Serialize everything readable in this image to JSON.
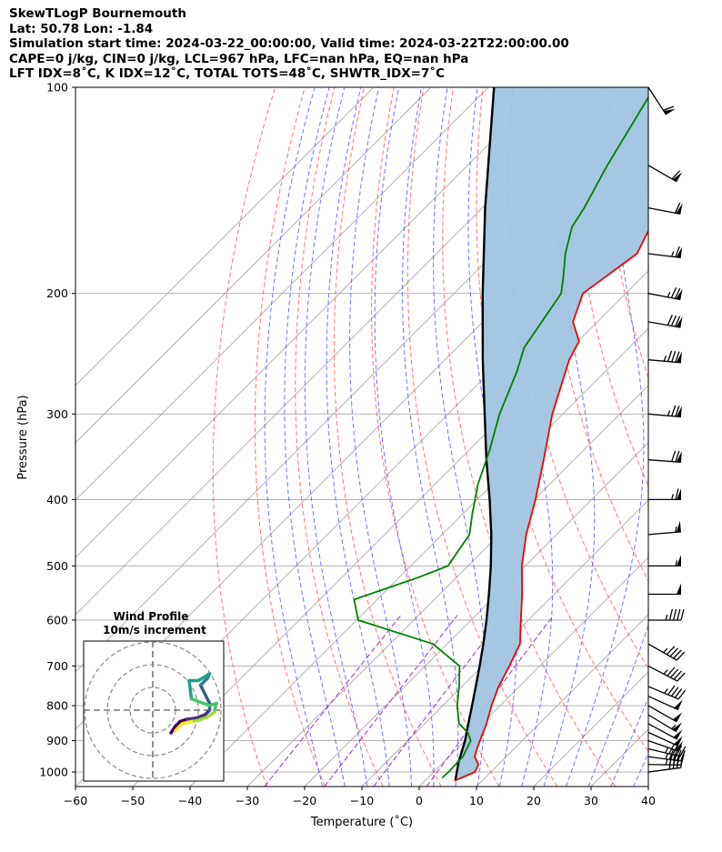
{
  "header": {
    "line1": "SkewTLogP Bournemouth",
    "line2": "Lat: 50.78   Lon: -1.84",
    "line3": "Simulation start time: 2024-03-22_00:00:00, Valid time: 2024-03-22T22:00:00.00",
    "line4": "CAPE=0 j/kg, CIN=0 j/kg, LCL=967 hPa, LFC=nan hPa, EQ=nan hPa",
    "line5": "LFT IDX=8˚C, K IDX=12˚C, TOTAL TOTS=48˚C, SHWTR_IDX=7˚C"
  },
  "colors": {
    "temperature": "#ee0000",
    "dewpoint": "#008000",
    "parcel": "#000000",
    "cape_fill": "#a0c4df",
    "dry_adiabat": "#ff5050",
    "moist_adiabat": "#4d4dff",
    "mixing_ratio": "#9b30c8",
    "isotherm": "#a8a8a8"
  },
  "chart_data": {
    "type": "skewt",
    "xlabel": "Temperature (˚C)",
    "ylabel": "Pressure (hPa)",
    "xlim": [
      -60,
      40
    ],
    "ylim": [
      1050,
      100
    ],
    "x_ticks": [
      "−60",
      "−50",
      "−40",
      "−30",
      "−20",
      "−10",
      "0",
      "10",
      "20",
      "30",
      "40"
    ],
    "y_ticks": [
      "100",
      "200",
      "300",
      "400",
      "500",
      "600",
      "700",
      "800",
      "900",
      "1000"
    ],
    "grid": true,
    "temperature": [
      {
        "p": 1030,
        "t": 5.2
      },
      {
        "p": 1000,
        "t": 7.2
      },
      {
        "p": 975,
        "t": 6.5
      },
      {
        "p": 950,
        "t": 4.5
      },
      {
        "p": 925,
        "t": 3.5
      },
      {
        "p": 900,
        "t": 2.6
      },
      {
        "p": 850,
        "t": 0.8
      },
      {
        "p": 800,
        "t": -1.5
      },
      {
        "p": 750,
        "t": -3.6
      },
      {
        "p": 700,
        "t": -5.3
      },
      {
        "p": 650,
        "t": -7.3
      },
      {
        "p": 600,
        "t": -11.3
      },
      {
        "p": 550,
        "t": -15.6
      },
      {
        "p": 500,
        "t": -20.6
      },
      {
        "p": 450,
        "t": -25.3
      },
      {
        "p": 400,
        "t": -29.8
      },
      {
        "p": 350,
        "t": -35.3
      },
      {
        "p": 300,
        "t": -41.8
      },
      {
        "p": 250,
        "t": -48.3
      },
      {
        "p": 235,
        "t": -49.8
      },
      {
        "p": 220,
        "t": -54.3
      },
      {
        "p": 200,
        "t": -57.5
      },
      {
        "p": 175,
        "t": -55.0
      },
      {
        "p": 150,
        "t": -59.0
      },
      {
        "p": 130,
        "t": -63.0
      },
      {
        "p": 120,
        "t": -64.0
      },
      {
        "p": 110,
        "t": -67.3
      },
      {
        "p": 100,
        "t": -69.3
      }
    ],
    "dewpoint": [
      {
        "p": 1020,
        "t": 2.5
      },
      {
        "p": 1000,
        "t": 2.6
      },
      {
        "p": 950,
        "t": 2.4
      },
      {
        "p": 900,
        "t": 1.0
      },
      {
        "p": 875,
        "t": -1.0
      },
      {
        "p": 850,
        "t": -4.0
      },
      {
        "p": 800,
        "t": -7.5
      },
      {
        "p": 750,
        "t": -10.5
      },
      {
        "p": 700,
        "t": -14.0
      },
      {
        "p": 650,
        "t": -22.5
      },
      {
        "p": 600,
        "t": -39.7
      },
      {
        "p": 560,
        "t": -44.0
      },
      {
        "p": 520,
        "t": -36.7
      },
      {
        "p": 500,
        "t": -33.5
      },
      {
        "p": 450,
        "t": -35.2
      },
      {
        "p": 420,
        "t": -38.3
      },
      {
        "p": 380,
        "t": -42.5
      },
      {
        "p": 340,
        "t": -46.3
      },
      {
        "p": 300,
        "t": -51.0
      },
      {
        "p": 260,
        "t": -55.4
      },
      {
        "p": 240,
        "t": -58.3
      },
      {
        "p": 200,
        "t": -61.3
      },
      {
        "p": 190,
        "t": -63.6
      },
      {
        "p": 175,
        "t": -67.5
      },
      {
        "p": 160,
        "t": -71.0
      },
      {
        "p": 150,
        "t": -72.2
      },
      {
        "p": 130,
        "t": -75.6
      },
      {
        "p": 100,
        "t": -81.0
      }
    ],
    "parcel": [
      {
        "p": 1030,
        "t": 5.3
      },
      {
        "p": 967,
        "t": 2.6
      },
      {
        "p": 900,
        "t": 0.0
      },
      {
        "p": 850,
        "t": -2.4
      },
      {
        "p": 800,
        "t": -4.9
      },
      {
        "p": 750,
        "t": -7.6
      },
      {
        "p": 700,
        "t": -10.5
      },
      {
        "p": 650,
        "t": -13.7
      },
      {
        "p": 600,
        "t": -17.3
      },
      {
        "p": 550,
        "t": -21.4
      },
      {
        "p": 500,
        "t": -26.0
      },
      {
        "p": 450,
        "t": -31.4
      },
      {
        "p": 400,
        "t": -37.8
      },
      {
        "p": 350,
        "t": -45.3
      },
      {
        "p": 300,
        "t": -53.6
      },
      {
        "p": 250,
        "t": -63.4
      },
      {
        "p": 200,
        "t": -75.0
      },
      {
        "p": 150,
        "t": -89.5
      },
      {
        "p": 100,
        "t": -109.0
      }
    ],
    "wind_barbs": [
      {
        "p": 1000,
        "u": -20.5,
        "v": -2.7
      },
      {
        "p": 975,
        "u": -22.1,
        "v": 0.3
      },
      {
        "p": 950,
        "u": -23.1,
        "v": 3.0
      },
      {
        "p": 925,
        "u": -23.6,
        "v": 5.6
      },
      {
        "p": 900,
        "u": -23.9,
        "v": 8.3
      },
      {
        "p": 875,
        "u": -23.6,
        "v": 10.8
      },
      {
        "p": 850,
        "u": -23.2,
        "v": 12.6
      },
      {
        "p": 825,
        "u": -23.2,
        "v": 14.0
      },
      {
        "p": 800,
        "u": -23.5,
        "v": 13.3
      },
      {
        "p": 775,
        "u": -22.9,
        "v": 10.3
      },
      {
        "p": 750,
        "u": -21.4,
        "v": 9.0
      },
      {
        "p": 700,
        "u": -20.2,
        "v": 10.6
      },
      {
        "p": 650,
        "u": -21.0,
        "v": 12.0
      },
      {
        "p": 600,
        "u": -23.8,
        "v": 0.0
      },
      {
        "p": 550,
        "u": -26.6,
        "v": 0.0
      },
      {
        "p": 500,
        "u": -27.1,
        "v": 0.0
      },
      {
        "p": 450,
        "u": -28.5,
        "v": -2.5
      },
      {
        "p": 400,
        "u": -32.2,
        "v": 0.0
      },
      {
        "p": 350,
        "u": -36.2,
        "v": 2.6
      },
      {
        "p": 300,
        "u": -38.0,
        "v": 3.4
      },
      {
        "p": 250,
        "u": -43.5,
        "v": 3.8
      },
      {
        "p": 220,
        "u": -41.2,
        "v": 7.3
      },
      {
        "p": 200,
        "u": -38.7,
        "v": 7.5
      },
      {
        "p": 175,
        "u": -32.5,
        "v": 4.0
      },
      {
        "p": 150,
        "u": -31.5,
        "v": 6.1
      },
      {
        "p": 130,
        "u": -27.8,
        "v": 16.0
      },
      {
        "p": 100,
        "u": -16.3,
        "v": 25.1
      }
    ],
    "hodograph": {
      "title": "Wind Profile",
      "subtitle": "10m/s increment",
      "rings_ms": [
        10,
        20,
        30
      ],
      "points": [
        {
          "u": 8.0,
          "v": -10.0
        },
        {
          "u": 10.0,
          "v": -7.0
        },
        {
          "u": 12.0,
          "v": -5.0
        },
        {
          "u": 15.0,
          "v": -4.0
        },
        {
          "u": 19.0,
          "v": -3.5
        },
        {
          "u": 23.0,
          "v": -2.0
        },
        {
          "u": 25.0,
          "v": 0.0
        },
        {
          "u": 25.0,
          "v": 3.0
        },
        {
          "u": 23.0,
          "v": 7.0
        },
        {
          "u": 21.0,
          "v": 11.0
        },
        {
          "u": 24.0,
          "v": 14.0
        },
        {
          "u": 25.0,
          "v": 16.0
        },
        {
          "u": 20.0,
          "v": 13.0
        },
        {
          "u": 16.0,
          "v": 13.0
        },
        {
          "u": 17.0,
          "v": 5.0
        },
        {
          "u": 25.0,
          "v": 2.0
        },
        {
          "u": 28.0,
          "v": 3.0
        },
        {
          "u": 27.0,
          "v": -1.0
        },
        {
          "u": 24.0,
          "v": -3.0
        },
        {
          "u": 20.0,
          "v": -4.5
        },
        {
          "u": 17.0,
          "v": -5.0
        },
        {
          "u": 13.0,
          "v": -6.0
        },
        {
          "u": 10.0,
          "v": -9.0
        }
      ]
    }
  }
}
